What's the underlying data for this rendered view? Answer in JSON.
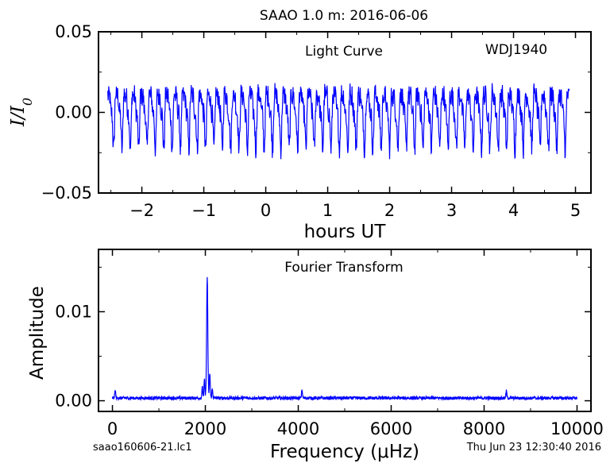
{
  "title": "SAAO 1.0 m:  2016-06-06",
  "footer": {
    "filename": "saao160606-21.lc1",
    "timestamp": "Thu Jun 23 12:30:40 2016"
  },
  "colors": {
    "line": "#0000ff",
    "axes": "#000000",
    "background": "#ffffff"
  },
  "chart_data": [
    {
      "type": "line",
      "name": "light_curve",
      "annotation": "Light Curve",
      "target": "WDJ1940",
      "xlabel": "hours UT",
      "ylabel": "I/I0",
      "xlim": [
        -2.7,
        5.25
      ],
      "ylim": [
        -0.05,
        0.05
      ],
      "xticks": [
        -2,
        -1,
        0,
        1,
        2,
        3,
        4,
        5
      ],
      "xtick_labels": [
        "−2",
        "−1",
        "0",
        "1",
        "2",
        "3",
        "4",
        "5"
      ],
      "yticks": [
        -0.05,
        0.0,
        0.05
      ],
      "ytick_labels": [
        "−0.05",
        "0.00",
        "0.05"
      ],
      "x_range": [
        -2.55,
        4.9
      ],
      "oscillation_period_hours": 0.135,
      "envelope": {
        "max": 0.033,
        "min": -0.029,
        "typical_peak": 0.022,
        "typical_trough": -0.02
      }
    },
    {
      "type": "line",
      "name": "fourier_transform",
      "annotation": "Fourier Transform",
      "xlabel": "Frequency (μHz)",
      "ylabel": "Amplitude",
      "xlim": [
        -300,
        10300
      ],
      "ylim": [
        -0.0012,
        0.017
      ],
      "xticks": [
        0,
        2000,
        4000,
        6000,
        8000,
        10000
      ],
      "xtick_labels": [
        "0",
        "2000",
        "4000",
        "6000",
        "8000",
        "10000"
      ],
      "yticks": [
        0.0,
        0.01
      ],
      "ytick_labels": [
        "0.00",
        "0.01"
      ],
      "x_range": [
        0,
        10000
      ],
      "peaks": [
        {
          "freq": 2040,
          "amp": 0.0136
        },
        {
          "freq": 1980,
          "amp": 0.0021
        },
        {
          "freq": 2095,
          "amp": 0.0028
        },
        {
          "freq": 1935,
          "amp": 0.0012
        },
        {
          "freq": 2150,
          "amp": 0.001
        },
        {
          "freq": 60,
          "amp": 0.0009
        },
        {
          "freq": 4080,
          "amp": 0.0009
        },
        {
          "freq": 8480,
          "amp": 0.0008
        }
      ],
      "noise_level": 0.0004
    }
  ]
}
